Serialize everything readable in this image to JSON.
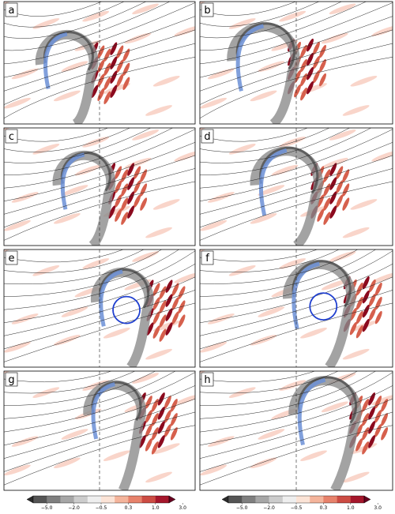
{
  "panels": [
    {
      "label": "a"
    },
    {
      "label": "b"
    },
    {
      "label": "c"
    },
    {
      "label": "d"
    },
    {
      "label": "e"
    },
    {
      "label": "f"
    },
    {
      "label": "g"
    },
    {
      "label": "h"
    }
  ],
  "colorbars": [
    {
      "tick_labels": [
        "−5.0",
        "−2.0",
        "−0.5",
        "0.3",
        "1.0",
        "3.0"
      ]
    },
    {
      "tick_labels": [
        "−5.0",
        "−2.0",
        "−0.5",
        "0.3",
        "1.0",
        "3.0"
      ]
    }
  ]
}
